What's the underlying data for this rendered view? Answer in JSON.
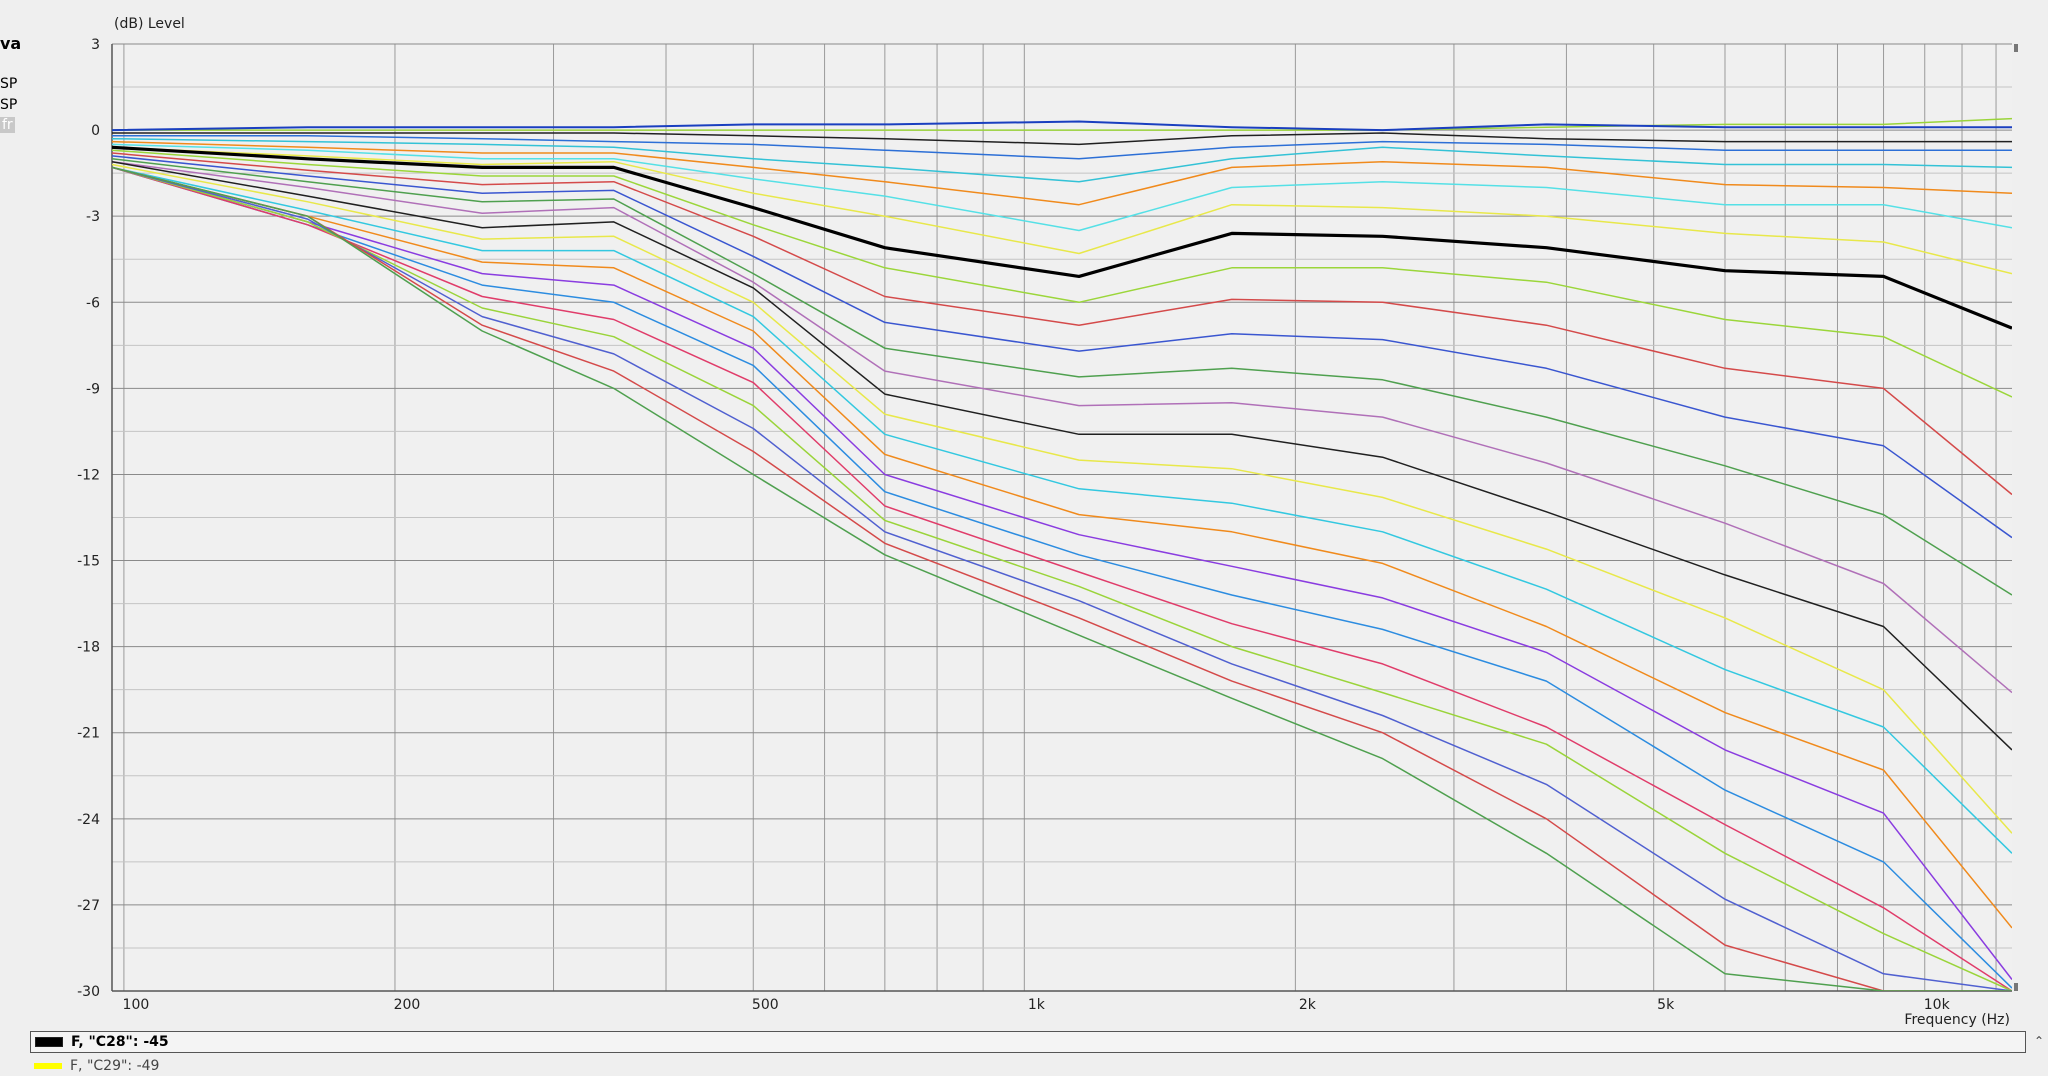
{
  "sidebar": {
    "title": "va",
    "item1": "SP",
    "item2": "SP",
    "item3": "fr"
  },
  "legend": {
    "row1": "F, \"C28\": -45",
    "row1_color": "#000000",
    "row2": "F, \"C29\": -49",
    "row2_color": "#ffff00"
  },
  "chart_data": {
    "type": "line",
    "ylabel_unit": "(dB)",
    "ylabel": "Level",
    "xlabel": "Frequency",
    "xlabel_unit": "(Hz)",
    "xscale": "log",
    "xlim": [
      97,
      12500
    ],
    "ylim": [
      -30,
      3
    ],
    "grid": true,
    "x_tick_labels": [
      {
        "value": 100,
        "label": "100"
      },
      {
        "value": 200,
        "label": "200"
      },
      {
        "value": 500,
        "label": "500"
      },
      {
        "value": 1000,
        "label": "1k"
      },
      {
        "value": 2000,
        "label": "2k"
      },
      {
        "value": 5000,
        "label": "5k"
      },
      {
        "value": 10000,
        "label": "10k"
      }
    ],
    "y_tick_labels": [
      3,
      0,
      -3,
      -6,
      -9,
      -12,
      -15,
      -18,
      -21,
      -24,
      -27,
      -30
    ],
    "x": [
      97,
      160,
      250,
      350,
      500,
      700,
      1150,
      1700,
      2500,
      3800,
      6000,
      9000,
      12500
    ],
    "series": [
      {
        "color": "#1a3fbf",
        "width": 2,
        "values": [
          0.0,
          0.1,
          0.1,
          0.1,
          0.2,
          0.2,
          0.3,
          0.1,
          0.0,
          0.2,
          0.1,
          0.1,
          0.1
        ]
      },
      {
        "color": "#9ad43a",
        "width": 1.5,
        "values": [
          0.0,
          0.0,
          0.0,
          0.0,
          0.0,
          0.0,
          0.0,
          0.0,
          0.0,
          0.1,
          0.2,
          0.2,
          0.4
        ]
      },
      {
        "color": "#202020",
        "width": 1.5,
        "values": [
          -0.1,
          -0.1,
          -0.1,
          -0.1,
          -0.2,
          -0.3,
          -0.5,
          -0.2,
          -0.1,
          -0.3,
          -0.4,
          -0.4,
          -0.4
        ]
      },
      {
        "color": "#2c6fd6",
        "width": 1.5,
        "values": [
          -0.2,
          -0.2,
          -0.3,
          -0.4,
          -0.5,
          -0.7,
          -1.0,
          -0.6,
          -0.4,
          -0.5,
          -0.7,
          -0.7,
          -0.7
        ]
      },
      {
        "color": "#33c2d6",
        "width": 1.5,
        "values": [
          -0.3,
          -0.4,
          -0.5,
          -0.6,
          -1.0,
          -1.3,
          -1.8,
          -1.0,
          -0.6,
          -0.9,
          -1.2,
          -1.2,
          -1.3
        ]
      },
      {
        "color": "#f08a1c",
        "width": 1.5,
        "values": [
          -0.4,
          -0.6,
          -0.8,
          -0.8,
          -1.3,
          -1.8,
          -2.6,
          -1.3,
          -1.1,
          -1.3,
          -1.9,
          -2.0,
          -2.2
        ]
      },
      {
        "color": "#55e0e6",
        "width": 1.5,
        "values": [
          -0.5,
          -0.7,
          -1.0,
          -1.0,
          -1.7,
          -2.3,
          -3.5,
          -2.0,
          -1.8,
          -2.0,
          -2.6,
          -2.6,
          -3.4
        ]
      },
      {
        "color": "#e8e84a",
        "width": 1.5,
        "values": [
          -0.6,
          -0.9,
          -1.2,
          -1.1,
          -2.2,
          -3.0,
          -4.3,
          -2.6,
          -2.7,
          -3.0,
          -3.6,
          -3.9,
          -5.0
        ]
      },
      {
        "color": "#000000",
        "width": 3.2,
        "values": [
          -0.6,
          -1.0,
          -1.3,
          -1.3,
          -2.7,
          -4.1,
          -5.1,
          -3.6,
          -3.7,
          -4.1,
          -4.9,
          -5.1,
          -6.9
        ]
      },
      {
        "color": "#9bd63a",
        "width": 1.5,
        "values": [
          -0.7,
          -1.2,
          -1.6,
          -1.6,
          -3.3,
          -4.8,
          -6.0,
          -4.8,
          -4.8,
          -5.3,
          -6.6,
          -7.2,
          -9.3
        ]
      },
      {
        "color": "#d44a4a",
        "width": 1.5,
        "values": [
          -0.8,
          -1.4,
          -1.9,
          -1.8,
          -3.7,
          -5.8,
          -6.8,
          -5.9,
          -6.0,
          -6.8,
          -8.3,
          -9.0,
          -12.7
        ]
      },
      {
        "color": "#3a56d0",
        "width": 1.5,
        "values": [
          -0.9,
          -1.6,
          -2.2,
          -2.1,
          -4.4,
          -6.7,
          -7.7,
          -7.1,
          -7.3,
          -8.3,
          -10.0,
          -11.0,
          -14.2
        ]
      },
      {
        "color": "#4fa04f",
        "width": 1.5,
        "values": [
          -1.0,
          -1.8,
          -2.5,
          -2.4,
          -5.0,
          -7.6,
          -8.6,
          -8.3,
          -8.7,
          -10.0,
          -11.7,
          -13.4,
          -16.2
        ]
      },
      {
        "color": "#b070b8",
        "width": 1.5,
        "values": [
          -1.1,
          -2.0,
          -2.9,
          -2.7,
          -5.3,
          -8.4,
          -9.6,
          -9.5,
          -10.0,
          -11.6,
          -13.7,
          -15.8,
          -19.6
        ]
      },
      {
        "color": "#202020",
        "width": 1.5,
        "values": [
          -1.1,
          -2.3,
          -3.4,
          -3.2,
          -5.5,
          -9.2,
          -10.6,
          -10.6,
          -11.4,
          -13.3,
          -15.5,
          -17.3,
          -21.6
        ]
      },
      {
        "color": "#e8e84a",
        "width": 1.5,
        "values": [
          -1.2,
          -2.5,
          -3.8,
          -3.7,
          -6.0,
          -9.9,
          -11.5,
          -11.8,
          -12.8,
          -14.6,
          -17.0,
          -19.5,
          -24.5
        ]
      },
      {
        "color": "#33c8e0",
        "width": 1.5,
        "values": [
          -1.3,
          -2.8,
          -4.2,
          -4.2,
          -6.5,
          -10.6,
          -12.5,
          -13.0,
          -14.0,
          -16.0,
          -18.8,
          -20.8,
          -25.2
        ]
      },
      {
        "color": "#f08a1c",
        "width": 1.5,
        "values": [
          -1.3,
          -3.0,
          -4.6,
          -4.8,
          -7.0,
          -11.3,
          -13.4,
          -14.0,
          -15.1,
          -17.3,
          -20.3,
          -22.3,
          -27.8
        ]
      },
      {
        "color": "#8a3ce0",
        "width": 1.5,
        "values": [
          -1.3,
          -3.2,
          -5.0,
          -5.4,
          -7.6,
          -12.0,
          -14.1,
          -15.2,
          -16.3,
          -18.2,
          -21.6,
          -23.8,
          -29.6
        ]
      },
      {
        "color": "#2c8ce0",
        "width": 1.5,
        "values": [
          -1.3,
          -3.3,
          -5.4,
          -6.0,
          -8.2,
          -12.6,
          -14.8,
          -16.2,
          -17.4,
          -19.2,
          -23.0,
          -25.5,
          -29.9
        ]
      },
      {
        "color": "#e03c6a",
        "width": 1.5,
        "values": [
          -1.3,
          -3.3,
          -5.8,
          -6.6,
          -8.8,
          -13.1,
          -15.4,
          -17.2,
          -18.6,
          -20.8,
          -24.2,
          -27.1,
          -30.0
        ]
      },
      {
        "color": "#9ad43a",
        "width": 1.5,
        "values": [
          -1.3,
          -3.2,
          -6.2,
          -7.2,
          -9.6,
          -13.6,
          -15.9,
          -18.0,
          -19.6,
          -21.4,
          -25.2,
          -28.0,
          -30.0
        ]
      },
      {
        "color": "#5060d0",
        "width": 1.5,
        "values": [
          -1.3,
          -3.1,
          -6.5,
          -7.8,
          -10.4,
          -14.0,
          -16.4,
          -18.6,
          -20.4,
          -22.8,
          -26.8,
          -29.4,
          -30.0
        ]
      },
      {
        "color": "#d44a4a",
        "width": 1.5,
        "values": [
          -1.3,
          -3.0,
          -6.8,
          -8.4,
          -11.2,
          -14.4,
          -17.0,
          -19.2,
          -21.0,
          -24.0,
          -28.4,
          -30.0,
          -30.0
        ]
      },
      {
        "color": "#4fa04f",
        "width": 1.5,
        "values": [
          -1.3,
          -3.0,
          -7.0,
          -9.0,
          -12.0,
          -14.8,
          -17.6,
          -19.8,
          -21.9,
          -25.2,
          -29.4,
          -30.0,
          -30.0
        ]
      }
    ]
  }
}
